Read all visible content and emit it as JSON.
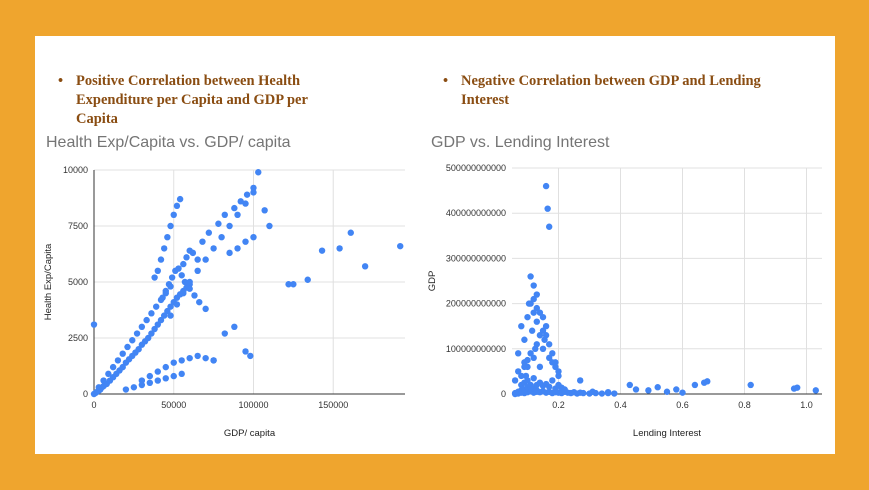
{
  "bullets": {
    "left": "Positive Correlation between Health Expenditure per Capita and GDP per Capita",
    "right": "Negative Correlation between GDP and Lending Interest",
    "marker": "•"
  },
  "colors": {
    "background": "#efa52e",
    "bullet_text": "#8a4d12",
    "point": "#4285f4",
    "grid": "#e0e0e0"
  },
  "chart_data": [
    {
      "type": "scatter",
      "title": "Health Exp/Capita vs. GDP/ capita",
      "xlabel": "GDP/ capita",
      "ylabel": "Health Exp/Capita",
      "xlim": [
        0,
        195000
      ],
      "ylim": [
        0,
        10000
      ],
      "xticks": [
        0,
        50000,
        100000,
        150000
      ],
      "yticks": [
        0,
        2500,
        5000,
        7500,
        10000
      ],
      "grid": true,
      "series": [
        {
          "x": [
            0,
            1000,
            2000,
            3000,
            4000,
            5000,
            6000,
            8000,
            10000,
            12000,
            14000,
            16000,
            18000,
            20000,
            22000,
            24000,
            26000,
            28000,
            30000,
            32000,
            34000,
            36000,
            38000,
            40000,
            42000,
            44000,
            46000,
            48000,
            50000,
            52000,
            54000,
            56000,
            58000,
            60000,
            3000,
            6000,
            9000,
            12000,
            15000,
            18000,
            21000,
            24000,
            27000,
            30000,
            33000,
            36000,
            39000,
            42000,
            45000,
            48000,
            20000,
            25000,
            30000,
            35000,
            40000,
            45000,
            50000,
            55000,
            38000,
            40000,
            42000,
            44000,
            46000,
            48000,
            50000,
            52000,
            54000,
            56000,
            58000,
            60000,
            62000,
            65000,
            43000,
            45000,
            47000,
            49000,
            51000,
            53000,
            55000,
            57000,
            60000,
            63000,
            66000,
            70000,
            48000,
            52000,
            56000,
            60000,
            65000,
            70000,
            75000,
            80000,
            85000,
            90000,
            95000,
            100000,
            103000,
            107000,
            110000,
            68000,
            72000,
            78000,
            82000,
            88000,
            92000,
            96000,
            100000,
            30000,
            35000,
            40000,
            45000,
            50000,
            55000,
            60000,
            65000,
            70000,
            75000,
            75000,
            82000,
            88000,
            95000,
            98000,
            85000,
            90000,
            95000,
            100000,
            -500,
            122000,
            125000,
            134000,
            143000,
            154000,
            161000,
            170000,
            192000
          ],
          "y": [
            0,
            50,
            100,
            150,
            200,
            300,
            350,
            450,
            600,
            750,
            900,
            1050,
            1200,
            1400,
            1550,
            1700,
            1850,
            2000,
            2200,
            2350,
            2500,
            2700,
            2900,
            3100,
            3300,
            3500,
            3700,
            3900,
            4100,
            4300,
            4450,
            4600,
            4750,
            4900,
            300,
            600,
            900,
            1200,
            1500,
            1800,
            2100,
            2400,
            2700,
            3000,
            3300,
            3600,
            3900,
            4200,
            4500,
            4800,
            200,
            300,
            400,
            500,
            600,
            700,
            800,
            900,
            5200,
            5500,
            6000,
            6500,
            7000,
            7500,
            8000,
            8400,
            8700,
            5800,
            6100,
            6400,
            6300,
            6000,
            4300,
            4600,
            4900,
            5200,
            5500,
            5600,
            5300,
            5000,
            4700,
            4400,
            4100,
            3800,
            3500,
            4000,
            4500,
            5000,
            5500,
            6000,
            6500,
            7000,
            7500,
            8000,
            8500,
            9000,
            9900,
            8200,
            7500,
            6800,
            7200,
            7600,
            8000,
            8300,
            8600,
            8900,
            9200,
            600,
            800,
            1000,
            1200,
            1400,
            1500,
            1600,
            1700,
            1600,
            1500,
            1500,
            2700,
            3000,
            1900,
            1700,
            6300,
            6500,
            6800,
            7000,
            3100,
            4900,
            4900,
            5100,
            6400,
            6500,
            7200,
            5700,
            6600
          ]
        }
      ]
    },
    {
      "type": "scatter",
      "title": "GDP vs. Lending Interest",
      "xlabel": "Lending Interest",
      "ylabel": "GDP",
      "xlim": [
        0.05,
        1.05
      ],
      "ylim": [
        0,
        500000000000
      ],
      "xticks": [
        0.2,
        0.4,
        0.6,
        0.8,
        1.0
      ],
      "xtick_labels": [
        "0.2",
        "0.4",
        "0.6",
        "0.8",
        "1.0"
      ],
      "yticks": [
        0,
        100000000000,
        200000000000,
        300000000000,
        400000000000,
        500000000000
      ],
      "ytick_labels": [
        "0",
        "100000000000",
        "200000000000",
        "300000000000",
        "400000000000",
        "500000000000"
      ],
      "grid": true,
      "series": [
        {
          "x": [
            0.06,
            0.06,
            0.07,
            0.07,
            0.08,
            0.08,
            0.09,
            0.09,
            0.1,
            0.1,
            0.11,
            0.11,
            0.12,
            0.12,
            0.13,
            0.13,
            0.14,
            0.15,
            0.16,
            0.17,
            0.18,
            0.19,
            0.2,
            0.21,
            0.22,
            0.23,
            0.24,
            0.25,
            0.26,
            0.27,
            0.28,
            0.3,
            0.32,
            0.34,
            0.36,
            0.38,
            0.06,
            0.07,
            0.08,
            0.09,
            0.1,
            0.11,
            0.12,
            0.13,
            0.14,
            0.15,
            0.16,
            0.17,
            0.18,
            0.19,
            0.2,
            0.08,
            0.09,
            0.1,
            0.11,
            0.12,
            0.13,
            0.14,
            0.15,
            0.16,
            0.17,
            0.18,
            0.19,
            0.2,
            0.21,
            0.22,
            0.07,
            0.08,
            0.09,
            0.1,
            0.11,
            0.12,
            0.13,
            0.14,
            0.15,
            0.11,
            0.12,
            0.13,
            0.14,
            0.15,
            0.16,
            0.17,
            0.18,
            0.19,
            0.2,
            0.12,
            0.13,
            0.16,
            0.17,
            0.165,
            0.155,
            0.105,
            0.115,
            0.125,
            0.09,
            0.095,
            0.1,
            0.27,
            0.31,
            0.36,
            0.43,
            0.45,
            0.49,
            0.52,
            0.55,
            0.58,
            0.6,
            0.64,
            0.67,
            0.68,
            0.82,
            0.96,
            0.97,
            1.03
          ],
          "y": [
            0,
            2000000000,
            1000000000,
            5000000000,
            3000000000,
            8000000000,
            2000000000,
            10000000000,
            4000000000,
            15000000000,
            6000000000,
            20000000000,
            3000000000,
            12000000000,
            8000000000,
            5000000000,
            4000000000,
            6000000000,
            3000000000,
            5000000000,
            2000000000,
            4000000000,
            3000000000,
            2000000000,
            5000000000,
            3000000000,
            2000000000,
            4000000000,
            1000000000,
            3000000000,
            2000000000,
            1000000000,
            2000000000,
            1000000000,
            2000000000,
            1000000000,
            30000000000,
            50000000000,
            40000000000,
            70000000000,
            60000000000,
            90000000000,
            80000000000,
            110000000000,
            60000000000,
            100000000000,
            130000000000,
            80000000000,
            70000000000,
            60000000000,
            40000000000,
            20000000000,
            25000000000,
            30000000000,
            15000000000,
            35000000000,
            20000000000,
            25000000000,
            18000000000,
            22000000000,
            16000000000,
            30000000000,
            12000000000,
            20000000000,
            14000000000,
            10000000000,
            90000000000,
            150000000000,
            120000000000,
            170000000000,
            200000000000,
            240000000000,
            220000000000,
            180000000000,
            140000000000,
            260000000000,
            180000000000,
            160000000000,
            130000000000,
            170000000000,
            150000000000,
            110000000000,
            90000000000,
            70000000000,
            50000000000,
            210000000000,
            190000000000,
            460000000000,
            370000000000,
            410000000000,
            120000000000,
            200000000000,
            140000000000,
            100000000000,
            60000000000,
            40000000000,
            75000000000,
            30000000000,
            5000000000,
            4000000000,
            20000000000,
            10000000000,
            8000000000,
            15000000000,
            5000000000,
            10000000000,
            3000000000,
            20000000000,
            25000000000,
            28000000000,
            20000000000,
            12000000000,
            14000000000,
            8000000000
          ]
        }
      ]
    }
  ]
}
